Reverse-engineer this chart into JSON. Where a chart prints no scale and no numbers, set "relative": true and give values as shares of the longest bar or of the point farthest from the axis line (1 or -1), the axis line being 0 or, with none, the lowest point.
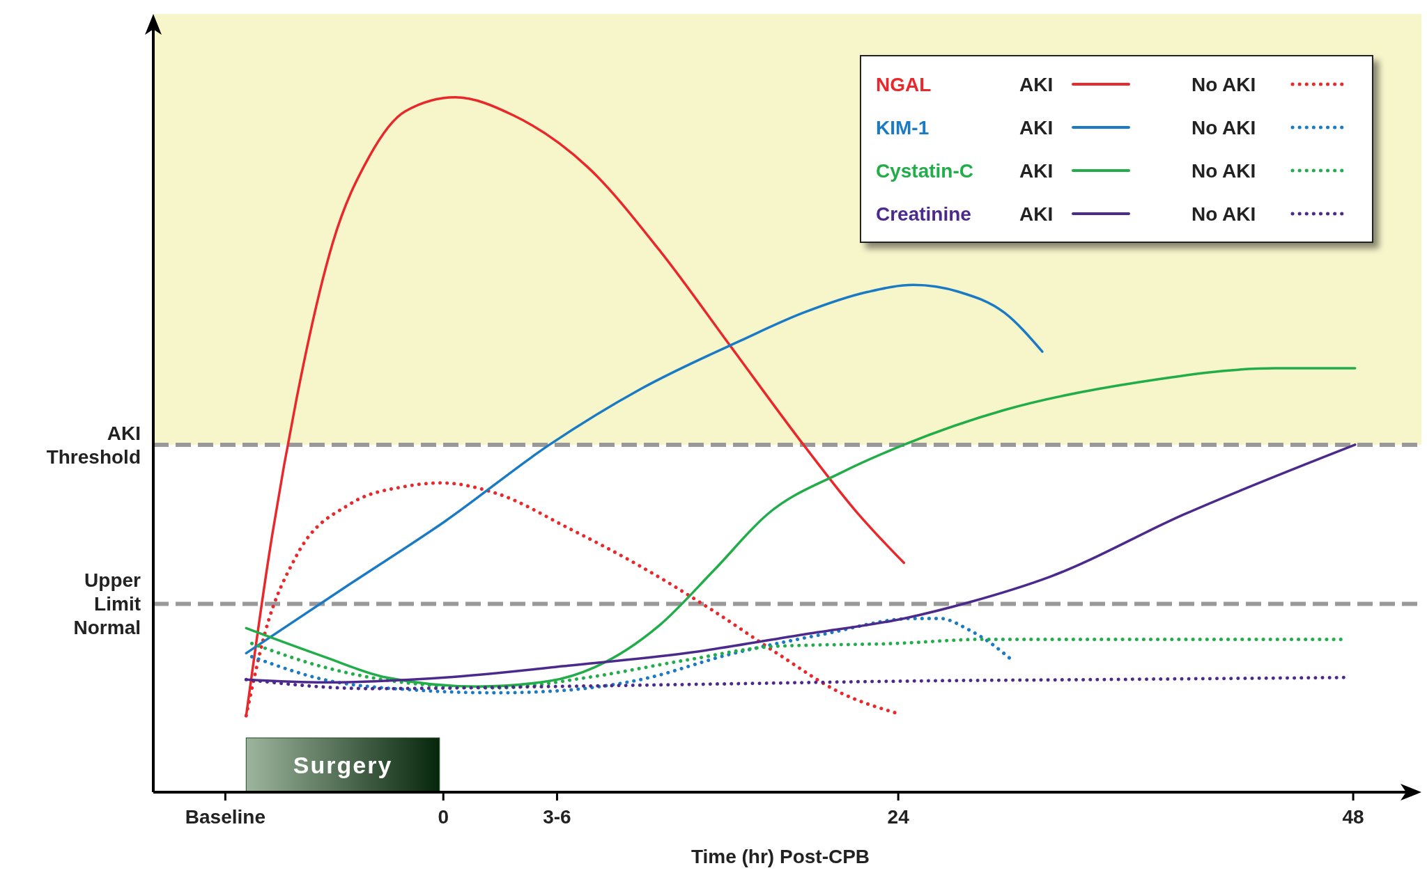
{
  "chart_data": {
    "type": "line",
    "relative": true,
    "xlabel": "Time (hr) Post-CPB",
    "xlim": [
      -15.3,
      51.6
    ],
    "xticks": [
      {
        "value": -11.5,
        "label": "Baseline"
      },
      0,
      {
        "value": 6,
        "label": "3-6"
      },
      24,
      48
    ],
    "legend": "top right",
    "marker": "none",
    "grid": false,
    "annotations": [
      "NGAL",
      "KIM-1",
      "Cystatin-C",
      "Creatinine"
    ],
    "ref_lines": [
      {
        "axis": "y",
        "value": 0.5,
        "label": "AKI Threshold",
        "color": "#999999",
        "line_style": "dashed"
      },
      {
        "axis": "y",
        "value": 0.271,
        "label": "Upper Limit Normal",
        "color": "#999999",
        "line_style": "dashed"
      }
    ],
    "bands": [
      {
        "axis": "y",
        "from": 0.5,
        "to": 1.12,
        "color": "#f7f6cb"
      },
      {
        "axis": "x",
        "from": -10.4,
        "to": -0.2,
        "label": "Surgery",
        "color": "#1e4a25"
      }
    ],
    "series": [
      {
        "name": "AKI",
        "color": "#e8282b",
        "line_style": "solid",
        "x": [
          -10.4,
          -9.2,
          -7.75,
          -5.84,
          -3.9,
          -2.0,
          0.62,
          3.7,
          7.6,
          11.4,
          15.2,
          19.0,
          21.9,
          24.3
        ],
        "values": [
          0.11,
          0.34,
          0.565,
          0.79,
          0.915,
          0.98,
          1.0,
          0.974,
          0.9,
          0.78,
          0.64,
          0.5,
          0.4,
          0.33
        ]
      },
      {
        "name": "No AKI",
        "color": "#e8282b",
        "line_style": "dotted",
        "x": [
          -10.4,
          -9.4,
          -7.75,
          -4.9,
          -2.0,
          -0.1,
          2.8,
          6.6,
          10.4,
          14.3,
          17.6,
          20.96,
          24.0
        ],
        "values": [
          0.11,
          0.23,
          0.34,
          0.415,
          0.44,
          0.445,
          0.43,
          0.38,
          0.325,
          0.26,
          0.2,
          0.143,
          0.113
        ]
      },
      {
        "name": "AKI",
        "color": "#1a7bc4",
        "line_style": "solid",
        "x": [
          -10.4,
          -4.9,
          0.1,
          5.6,
          10.4,
          15.7,
          19.0,
          22.4,
          24.8,
          27.2,
          29.6,
          31.6
        ],
        "values": [
          0.2,
          0.3,
          0.39,
          0.5,
          0.58,
          0.65,
          0.69,
          0.72,
          0.73,
          0.72,
          0.69,
          0.634
        ]
      },
      {
        "name": "No AKI",
        "color": "#1a7bc4",
        "line_style": "dotted",
        "x": [
          -10.1,
          -6.3,
          -1.5,
          2.8,
          6.6,
          10.4,
          15.2,
          20.0,
          24.8,
          26.2,
          27.7,
          28.9,
          30.0
        ],
        "values": [
          0.195,
          0.162,
          0.147,
          0.143,
          0.147,
          0.162,
          0.199,
          0.227,
          0.25,
          0.25,
          0.234,
          0.214,
          0.19
        ]
      },
      {
        "name": "AKI",
        "color": "#22ac4a",
        "line_style": "solid",
        "x": [
          -10.4,
          -6.3,
          -3.0,
          1.8,
          5.6,
          8.0,
          11.4,
          14.3,
          17.1,
          21.0,
          24.3,
          29.6,
          36.7,
          43.9,
          48.1
        ],
        "values": [
          0.236,
          0.195,
          0.165,
          0.152,
          0.16,
          0.18,
          0.24,
          0.32,
          0.4,
          0.46,
          0.5,
          0.55,
          0.59,
          0.61,
          0.61
        ]
      },
      {
        "name": "No AKI",
        "color": "#22ac4a",
        "line_style": "dotted",
        "x": [
          -10.1,
          -6.3,
          -1.5,
          2.8,
          7.6,
          12.8,
          17.6,
          23.8,
          28.6,
          36.7,
          47.6
        ],
        "values": [
          0.214,
          0.18,
          0.156,
          0.15,
          0.165,
          0.19,
          0.21,
          0.214,
          0.22,
          0.22,
          0.22
        ]
      },
      {
        "name": "AKI",
        "color": "#4b2a8c",
        "line_style": "solid",
        "x": [
          -10.4,
          -6.3,
          0.1,
          6.6,
          12.8,
          19.0,
          24.3,
          27.7,
          32.0,
          39.1,
          48.1
        ],
        "values": [
          0.162,
          0.158,
          0.165,
          0.182,
          0.2,
          0.227,
          0.25,
          0.273,
          0.31,
          0.4,
          0.5
        ]
      },
      {
        "name": "No AKI",
        "color": "#4b2a8c",
        "line_style": "dotted",
        "x": [
          -10.4,
          -3.9,
          5.6,
          15.2,
          24.8,
          34.3,
          47.6
        ],
        "values": [
          0.162,
          0.149,
          0.152,
          0.156,
          0.16,
          0.162,
          0.165
        ]
      }
    ]
  }
}
